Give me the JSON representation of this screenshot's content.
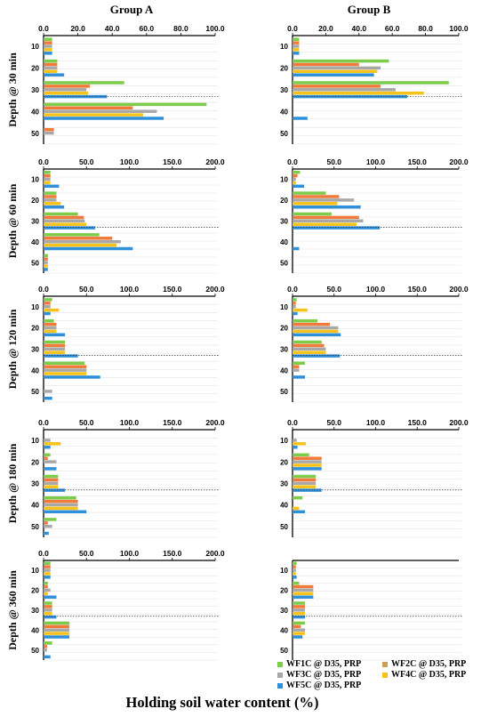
{
  "xlabel": "Holding soil water content (%)",
  "groups": [
    "Group  A",
    "Group  B"
  ],
  "legend": [
    {
      "label": "WF1C @ D35, PRP",
      "color": "#7ccb4a"
    },
    {
      "label": "WF2C @ D35, PRP",
      "color": "#f07a3a"
    },
    {
      "label": "WF3C @ D35, PRP",
      "color": "#a8a8a8"
    },
    {
      "label": "WF4C @ D35, PRP",
      "color": "#f7c21a"
    },
    {
      "label": "WF5C @ D35, PRP",
      "color": "#2f8fd8"
    }
  ],
  "chart_data": [
    {
      "type": "bar",
      "orientation": "horizontal",
      "group": "Group  A",
      "row_label": "Depth @ 30 min",
      "categories": [
        "10",
        "20",
        "30",
        "40",
        "50"
      ],
      "xlim": [
        0,
        100
      ],
      "xticks": [
        "0.0",
        "20.0",
        "40.0",
        "60.0",
        "80.0",
        "100.0"
      ],
      "series": [
        {
          "name": "WF1C @ D35, PRP",
          "values": [
            5,
            8,
            47,
            95,
            0
          ]
        },
        {
          "name": "WF2C @ D35, PRP",
          "values": [
            5,
            8,
            27,
            52,
            6
          ]
        },
        {
          "name": "WF3C @ D35, PRP",
          "values": [
            5,
            8,
            25,
            66,
            6
          ]
        },
        {
          "name": "WF4C @ D35, PRP",
          "values": [
            5,
            8,
            26,
            58,
            0
          ]
        },
        {
          "name": "WF5C @ D35, PRP",
          "values": [
            5,
            12,
            37,
            70,
            0
          ]
        }
      ]
    },
    {
      "type": "bar",
      "orientation": "horizontal",
      "group": "Group  B",
      "row_label": "Depth @ 30 min",
      "categories": [
        "10",
        "20",
        "30",
        "40",
        "50"
      ],
      "xlim": [
        0,
        100
      ],
      "xticks": [
        "0.0",
        "20.0",
        "40.0",
        "60.0",
        "80.0",
        "100.0"
      ],
      "series": [
        {
          "name": "WF1C @ D35, PRP",
          "values": [
            4,
            58,
            94,
            0,
            0
          ]
        },
        {
          "name": "WF2C @ D35, PRP",
          "values": [
            4,
            40,
            53,
            0,
            0
          ]
        },
        {
          "name": "WF3C @ D35, PRP",
          "values": [
            4,
            53,
            62,
            0,
            0
          ]
        },
        {
          "name": "WF4C @ D35, PRP",
          "values": [
            4,
            51,
            79,
            0,
            0
          ]
        },
        {
          "name": "WF5C @ D35, PRP",
          "values": [
            4,
            49,
            69,
            9,
            0
          ]
        }
      ]
    },
    {
      "type": "bar",
      "orientation": "horizontal",
      "group": "Group  A",
      "row_label": "Depth @ 60 min",
      "categories": [
        "10",
        "20",
        "30",
        "40",
        "50"
      ],
      "xlim": [
        0,
        200
      ],
      "xticks": [
        "0.0",
        "50.0",
        "100.0",
        "150.0",
        "200.0"
      ],
      "series": [
        {
          "name": "WF1C @ D35, PRP",
          "values": [
            8,
            15,
            40,
            65,
            5
          ]
        },
        {
          "name": "WF2C @ D35, PRP",
          "values": [
            8,
            15,
            47,
            80,
            5
          ]
        },
        {
          "name": "WF3C @ D35, PRP",
          "values": [
            8,
            15,
            48,
            90,
            5
          ]
        },
        {
          "name": "WF4C @ D35, PRP",
          "values": [
            8,
            20,
            50,
            85,
            5
          ]
        },
        {
          "name": "WF5C @ D35, PRP",
          "values": [
            18,
            24,
            60,
            104,
            5
          ]
        }
      ]
    },
    {
      "type": "bar",
      "orientation": "horizontal",
      "group": "Group  B",
      "row_label": "Depth @ 60 min",
      "categories": [
        "10",
        "20",
        "30",
        "40",
        "50"
      ],
      "xlim": [
        0,
        200
      ],
      "xticks": [
        "0.0",
        "50.0",
        "100.0",
        "150.0",
        "200.0"
      ],
      "series": [
        {
          "name": "WF1C @ D35, PRP",
          "values": [
            9,
            40,
            47,
            0,
            0
          ]
        },
        {
          "name": "WF2C @ D35, PRP",
          "values": [
            6,
            56,
            80,
            0,
            0
          ]
        },
        {
          "name": "WF3C @ D35, PRP",
          "values": [
            4,
            74,
            85,
            0,
            0
          ]
        },
        {
          "name": "WF4C @ D35, PRP",
          "values": [
            4,
            54,
            77,
            0,
            0
          ]
        },
        {
          "name": "WF5C @ D35, PRP",
          "values": [
            14,
            82,
            105,
            8,
            0
          ]
        }
      ]
    },
    {
      "type": "bar",
      "orientation": "horizontal",
      "group": "Group  A",
      "row_label": "Depth @ 120 min",
      "categories": [
        "10",
        "20",
        "30",
        "40",
        "50"
      ],
      "xlim": [
        0,
        200
      ],
      "xticks": [
        "0.0",
        "50.0",
        "100.0",
        "150.0",
        "200.0"
      ],
      "series": [
        {
          "name": "WF1C @ D35, PRP",
          "values": [
            10,
            12,
            25,
            48,
            0
          ]
        },
        {
          "name": "WF2C @ D35, PRP",
          "values": [
            8,
            15,
            25,
            50,
            0
          ]
        },
        {
          "name": "WF3C @ D35, PRP",
          "values": [
            8,
            15,
            25,
            50,
            10
          ]
        },
        {
          "name": "WF4C @ D35, PRP",
          "values": [
            18,
            15,
            25,
            50,
            0
          ]
        },
        {
          "name": "WF5C @ D35, PRP",
          "values": [
            8,
            25,
            40,
            66,
            10
          ]
        }
      ]
    },
    {
      "type": "bar",
      "orientation": "horizontal",
      "group": "Group  B",
      "row_label": "Depth @ 120 min",
      "categories": [
        "10",
        "20",
        "30",
        "40",
        "50"
      ],
      "xlim": [
        0,
        200
      ],
      "xticks": [
        "0.0",
        "50.0",
        "100.0",
        "150.0",
        "200.0"
      ],
      "series": [
        {
          "name": "WF1C @ D35, PRP",
          "values": [
            5,
            30,
            35,
            15,
            0
          ]
        },
        {
          "name": "WF2C @ D35, PRP",
          "values": [
            4,
            45,
            38,
            8,
            0
          ]
        },
        {
          "name": "WF3C @ D35, PRP",
          "values": [
            4,
            55,
            40,
            8,
            0
          ]
        },
        {
          "name": "WF4C @ D35, PRP",
          "values": [
            18,
            55,
            40,
            0,
            0
          ]
        },
        {
          "name": "WF5C @ D35, PRP",
          "values": [
            6,
            58,
            57,
            15,
            0
          ]
        }
      ]
    },
    {
      "type": "bar",
      "orientation": "horizontal",
      "group": "Group  A",
      "row_label": "Depth @ 180 min",
      "categories": [
        "10",
        "20",
        "30",
        "40",
        "50"
      ],
      "xlim": [
        0,
        200
      ],
      "xticks": [
        "0.0",
        "50.0",
        "100.0",
        "150.0",
        "200.0"
      ],
      "series": [
        {
          "name": "WF1C @ D35, PRP",
          "values": [
            0,
            8,
            17,
            38,
            15
          ]
        },
        {
          "name": "WF2C @ D35, PRP",
          "values": [
            0,
            5,
            17,
            40,
            5
          ]
        },
        {
          "name": "WF3C @ D35, PRP",
          "values": [
            8,
            15,
            17,
            40,
            10
          ]
        },
        {
          "name": "WF4C @ D35, PRP",
          "values": [
            20,
            0,
            17,
            40,
            0
          ]
        },
        {
          "name": "WF5C @ D35, PRP",
          "values": [
            8,
            15,
            25,
            50,
            6
          ]
        }
      ]
    },
    {
      "type": "bar",
      "orientation": "horizontal",
      "group": "Group  B",
      "row_label": "Depth @ 180 min",
      "categories": [
        "10",
        "20",
        "30",
        "40",
        "50"
      ],
      "xlim": [
        0,
        200
      ],
      "xticks": [
        "0.0",
        "50.0",
        "100.0",
        "150.0",
        "200.0"
      ],
      "series": [
        {
          "name": "WF1C @ D35, PRP",
          "values": [
            0,
            20,
            28,
            12,
            0
          ]
        },
        {
          "name": "WF2C @ D35, PRP",
          "values": [
            0,
            35,
            28,
            0,
            0
          ]
        },
        {
          "name": "WF3C @ D35, PRP",
          "values": [
            5,
            35,
            28,
            0,
            0
          ]
        },
        {
          "name": "WF4C @ D35, PRP",
          "values": [
            16,
            35,
            28,
            8,
            0
          ]
        },
        {
          "name": "WF5C @ D35, PRP",
          "values": [
            6,
            35,
            35,
            15,
            0
          ]
        }
      ]
    },
    {
      "type": "bar",
      "orientation": "horizontal",
      "group": "Group  A",
      "row_label": "Depth @ 360 min",
      "categories": [
        "10",
        "20",
        "30",
        "40",
        "50"
      ],
      "xlim": [
        0,
        200
      ],
      "xticks": [
        "0.0",
        "50.0",
        "100.0",
        "150.0",
        "200.0"
      ],
      "series": [
        {
          "name": "WF1C @ D35, PRP",
          "values": [
            8,
            5,
            10,
            30,
            10
          ]
        },
        {
          "name": "WF2C @ D35, PRP",
          "values": [
            8,
            5,
            10,
            30,
            4
          ]
        },
        {
          "name": "WF3C @ D35, PRP",
          "values": [
            8,
            8,
            10,
            30,
            4
          ]
        },
        {
          "name": "WF4C @ D35, PRP",
          "values": [
            8,
            5,
            10,
            30,
            0
          ]
        },
        {
          "name": "WF5C @ D35, PRP",
          "values": [
            8,
            15,
            15,
            30,
            8
          ]
        }
      ]
    },
    {
      "type": "bar",
      "orientation": "horizontal",
      "group": "Group  B",
      "row_label": "Depth @ 360 min",
      "categories": [
        "10",
        "20",
        "30",
        "40",
        "50"
      ],
      "xlim": [
        0,
        200
      ],
      "xticks": [],
      "series": [
        {
          "name": "WF1C @ D35, PRP",
          "values": [
            5,
            8,
            15,
            15,
            0
          ]
        },
        {
          "name": "WF2C @ D35, PRP",
          "values": [
            4,
            25,
            15,
            10,
            0
          ]
        },
        {
          "name": "WF3C @ D35, PRP",
          "values": [
            4,
            25,
            15,
            15,
            0
          ]
        },
        {
          "name": "WF4C @ D35, PRP",
          "values": [
            4,
            25,
            15,
            15,
            0
          ]
        },
        {
          "name": "WF5C @ D35, PRP",
          "values": [
            5,
            25,
            15,
            12,
            0
          ]
        }
      ]
    }
  ]
}
